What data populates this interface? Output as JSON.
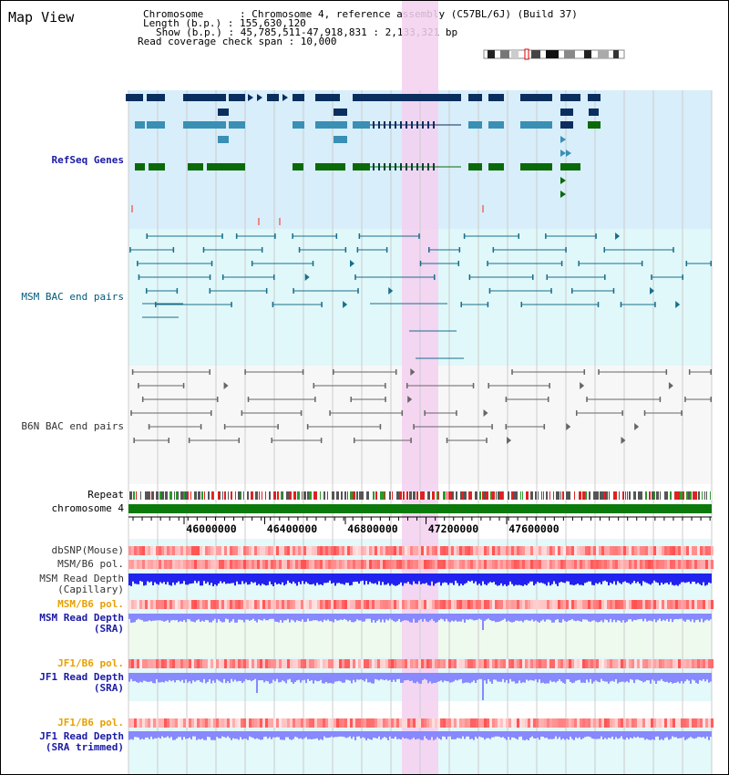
{
  "view_title": "Map View",
  "header": {
    "chromosome_line": "Chromosome      : Chromosome 4, reference assembly (C57BL/6J) (Build 37)",
    "length_line": "Length (b.p.) : 155,630,120",
    "show_line": "Show (b.p.) : 45,785,511-47,918,831 : 2,133,321 bp",
    "coverage_line": "Read coverage check span : 10,000"
  },
  "tracks": {
    "refseq": "RefSeq Genes",
    "msm_bac": "MSM BAC end pairs",
    "b6n_bac": "B6N BAC end pairs",
    "repeat": "Repeat",
    "chromosome": "chromosome 4",
    "dbsnp": "dbSNP(Mouse)",
    "msm_pol": "MSM/B6 pol.",
    "msm_depth_cap": "MSM Read Depth\n(Capillary)",
    "msm_pol2": "MSM/B6 pol.",
    "msm_depth_sra": "MSM Read Depth\n(SRA)",
    "jf1_pol": "JF1/B6 pol.",
    "jf1_depth_sra": "JF1 Read Depth\n(SRA)",
    "jf1_pol2": "JF1/B6 pol.",
    "jf1_depth_trim": "JF1 Read Depth\n(SRA trimmed)"
  },
  "axis_ticks": [
    "46000000",
    "46400000",
    "46800000",
    "47200000",
    "47600000"
  ],
  "colors": {
    "refseq_bg": "#d8eefa",
    "msm_bg": "#e0f8fa",
    "b6n_bg": "#f7f7f7",
    "highlight": "#f5d0f0",
    "gene_dark": "#0a2e5e",
    "gene_mid": "#3a8fb5",
    "gene_green": "#0a6a0a",
    "chrom_green": "#0a7a0a",
    "depth_blue": "#2222ee",
    "depth_light": "#8888ff"
  }
}
